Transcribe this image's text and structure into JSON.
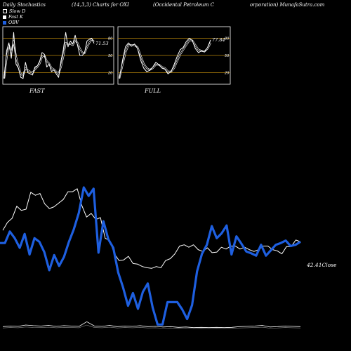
{
  "header": {
    "title": "Daily Stochastics",
    "params": "(14,3,3) Charts for OXI",
    "company": "(Occidental Petroleum C",
    "company_cont": "orporation) MunafaSutra.com"
  },
  "legend": [
    {
      "label": "Slow D",
      "color": "#000000"
    },
    {
      "label": "Fast K",
      "color": "#ffffff"
    },
    {
      "label": "OBV",
      "color": "#1e5fe0"
    }
  ],
  "colors": {
    "background": "#000000",
    "line": "#ffffff",
    "obv": "#1e5fe0",
    "band": "#b8860b"
  },
  "chart_data": [
    {
      "type": "line",
      "name": "FAST",
      "title": "FAST",
      "ylim": [
        0,
        100
      ],
      "yticks": [
        80,
        50,
        20
      ],
      "last_value_label": "71.53",
      "series": [
        {
          "name": "Fast K",
          "values": [
            10,
            58,
            72,
            45,
            90,
            35,
            28,
            12,
            10,
            38,
            20,
            18,
            16,
            30,
            32,
            40,
            55,
            52,
            30,
            35,
            22,
            25,
            18,
            12,
            40,
            60,
            90,
            65,
            75,
            70,
            85,
            68,
            50,
            50,
            55,
            75,
            78,
            80,
            71
          ]
        },
        {
          "name": "Slow D",
          "values": [
            10,
            45,
            68,
            55,
            75,
            48,
            32,
            18,
            15,
            28,
            24,
            22,
            20,
            26,
            30,
            36,
            48,
            50,
            40,
            36,
            28,
            26,
            22,
            18,
            30,
            48,
            72,
            70,
            70,
            68,
            76,
            72,
            62,
            55,
            54,
            64,
            72,
            78,
            74
          ]
        }
      ]
    },
    {
      "type": "line",
      "name": "FULL",
      "title": "FULL",
      "ylim": [
        0,
        100
      ],
      "yticks": [
        80,
        50,
        20
      ],
      "last_value_label": "77.84",
      "series": [
        {
          "name": "Full K",
          "values": [
            10,
            40,
            65,
            72,
            66,
            70,
            62,
            42,
            28,
            22,
            24,
            30,
            38,
            34,
            28,
            26,
            18,
            22,
            34,
            48,
            60,
            64,
            74,
            80,
            76,
            62,
            55,
            58,
            56,
            64,
            77
          ]
        },
        {
          "name": "Full D",
          "values": [
            10,
            32,
            55,
            68,
            68,
            68,
            64,
            50,
            36,
            28,
            25,
            28,
            34,
            34,
            30,
            28,
            22,
            22,
            28,
            40,
            52,
            60,
            68,
            76,
            76,
            68,
            60,
            58,
            57,
            62,
            72
          ]
        }
      ]
    },
    {
      "type": "line",
      "name": "price",
      "last_value_label": "42.41",
      "series": [
        {
          "name": "Close",
          "values": [
            56.5,
            57.8,
            58.5,
            60.5,
            59.8,
            60.0,
            62.8,
            62.3,
            62.6,
            60.9,
            60.1,
            60.4,
            61.0,
            61.6,
            62.9,
            62.9,
            63.4,
            60.6,
            58.7,
            59.3,
            58.3,
            58.6,
            55.2,
            54.8,
            52.6,
            51.5,
            51.6,
            52.2,
            51.0,
            50.9,
            50.5,
            50.3,
            50.2,
            50.5,
            50.3,
            51.5,
            51.8,
            52.6,
            53.9,
            54.1,
            53.7,
            54.1,
            53.3,
            53.0,
            53.6,
            52.8,
            52.9,
            53.7,
            53.4,
            53.9,
            53.9,
            53.4,
            53.7,
            53.3,
            53.0,
            53.3,
            53.9,
            53.9,
            53.3,
            53.1,
            52.6,
            53.8,
            53.8,
            54.9,
            54.6
          ]
        },
        {
          "name": "OBV",
          "values": [
            54.4,
            54.4,
            56.3,
            55.2,
            53.6,
            55.9,
            52.5,
            55.2,
            54.6,
            52.9,
            49.9,
            52.4,
            50.6,
            52.1,
            54.6,
            56.7,
            59.4,
            63.6,
            62.2,
            63.4,
            52.8,
            58.0,
            55.0,
            53.6,
            49.5,
            47.0,
            44.0,
            46.1,
            43.5,
            46.3,
            47.7,
            43.7,
            40.9,
            40.9,
            44.6,
            44.6,
            44.6,
            43.4,
            41.8,
            44.1,
            49.7,
            52.6,
            54.1,
            57.2,
            55.2,
            56.0,
            57.3,
            52.5,
            55.5,
            54.3,
            53.0,
            52.7,
            52.3,
            54.1,
            52.3,
            53.2,
            54.1,
            54.4,
            54.8,
            53.9,
            54.1,
            54.6
          ]
        }
      ]
    },
    {
      "type": "line",
      "name": "volume",
      "series": [
        {
          "name": "Volume",
          "values": [
            1.0,
            1.2,
            1.1,
            1.5,
            1.3,
            1.2,
            1.4,
            1.1,
            1.3,
            1.2,
            1.1,
            2.5,
            1.2,
            1.1,
            1.4,
            1.0,
            1.2,
            1.1,
            1.3,
            1.0,
            1.1,
            0.9,
            1.0,
            0.8,
            0.9,
            0.7,
            0.8,
            0.7,
            0.8,
            0.7,
            0.8,
            1.0,
            1.1,
            1.2,
            1.4,
            0.9,
            1.0,
            1.2,
            1.1,
            1.0
          ]
        }
      ]
    }
  ],
  "price_axis_label": "Close"
}
